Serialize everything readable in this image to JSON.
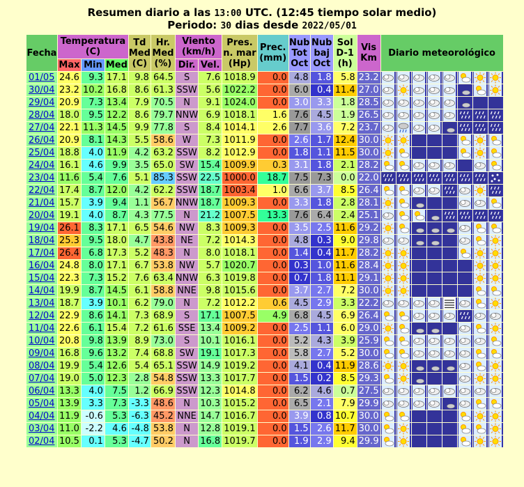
{
  "title": {
    "line1_a": "Resumen diario a las ",
    "line1_time": "13:00",
    "line1_b": " UTC. (12:45 tiempo solar medio)",
    "line2_a": "Periodo: ",
    "line2_days": "30",
    "line2_b": " dias desde ",
    "line2_date": "2022/05/01"
  },
  "headers": {
    "fecha": "Fecha",
    "temperatura": "Temperatura (C)",
    "max": "Max",
    "min": "Min",
    "med": "Med",
    "td": "Td Med (C)",
    "hr": "Hr. Med (%)",
    "viento": "Viento (km/h)",
    "dir": "Dir.",
    "vel": "Vel.",
    "pres": "Pres. n. mar (Hp)",
    "prec": "Prec. (mm)",
    "nubtot": "Nub Tot Oct",
    "nubbaj": "Nub baj Oct",
    "sol": "Sol D-1 (h)",
    "vis": "Vis Km",
    "diario": "Diario meteorológico"
  },
  "rows": [
    {
      "fecha": "01/05",
      "max": "24.6",
      "min": "9.3",
      "med": "17.1",
      "td": "9.8",
      "hr": "64.5",
      "dir": "S",
      "vel": "7.6",
      "pres": "1018.9",
      "prec": "0.0",
      "nt": "4.8",
      "nb": "1.8",
      "sol": "5.8",
      "vis": "23.2",
      "icons": [
        "pc",
        "pc",
        "pc",
        "pc",
        "pc",
        "sc",
        "sun",
        "sun"
      ]
    },
    {
      "fecha": "30/04",
      "max": "23.2",
      "min": "10.2",
      "med": "16.8",
      "td": "8.6",
      "hr": "61.3",
      "dir": "SSW",
      "vel": "5.6",
      "pres": "1022.2",
      "prec": "0.0",
      "nt": "6.0",
      "nb": "0.4",
      "sol": "11.4",
      "vis": "27.0",
      "icons": [
        "pc",
        "sun",
        "pc",
        "pc",
        "pc",
        "mc",
        "sc",
        "sun"
      ]
    },
    {
      "fecha": "29/04",
      "max": "20.9",
      "min": "7.3",
      "med": "13.4",
      "td": "7.9",
      "hr": "70.5",
      "dir": "N",
      "vel": "9.1",
      "pres": "1024.0",
      "prec": "0.0",
      "nt": "3.0",
      "nb": "3.3",
      "sol": "1.8",
      "vis": "28.5",
      "icons": [
        "pc",
        "pc",
        "pc",
        "pc",
        "pc",
        "mc",
        "moon",
        "moon"
      ]
    },
    {
      "fecha": "28/04",
      "max": "18.0",
      "min": "9.5",
      "med": "12.2",
      "td": "8.6",
      "hr": "79.7",
      "dir": "NNW",
      "vel": "6.9",
      "pres": "1018.1",
      "prec": "1.6",
      "nt": "7.6",
      "nb": "4.5",
      "sol": "1.9",
      "vis": "26.5",
      "icons": [
        "pc",
        "pc",
        "pc",
        "pc",
        "pc",
        "rain",
        "rain",
        "rain"
      ]
    },
    {
      "fecha": "27/04",
      "max": "22.1",
      "min": "11.3",
      "med": "14.5",
      "td": "9.9",
      "hr": "77.8",
      "dir": "S",
      "vel": "8.4",
      "pres": "1014.1",
      "prec": "2.6",
      "nt": "7.7",
      "nb": "3.6",
      "sol": "7.2",
      "vis": "23.7",
      "icons": [
        "pc",
        "rainc",
        "pc",
        "pc",
        "mc",
        "rain",
        "rain",
        "rain"
      ]
    },
    {
      "fecha": "26/04",
      "max": "20.9",
      "min": "8.1",
      "med": "14.3",
      "td": "5.5",
      "hr": "58.6",
      "dir": "W",
      "vel": "7.3",
      "pres": "1011.9",
      "prec": "0.0",
      "nt": "2.6",
      "nb": "1.7",
      "sol": "12.4",
      "vis": "30.0",
      "icons": [
        "sun",
        "sun",
        "moon",
        "moon",
        "moon",
        "sc",
        "sun",
        "sc"
      ]
    },
    {
      "fecha": "25/04",
      "max": "18.8",
      "min": "4.0",
      "med": "11.9",
      "td": "4.2",
      "hr": "63.2",
      "dir": "SSW",
      "vel": "8.2",
      "pres": "1012.9",
      "prec": "0.0",
      "nt": "1.8",
      "nb": "1.1",
      "sol": "11.5",
      "vis": "30.0",
      "icons": [
        "sun",
        "sc",
        "moon",
        "moon",
        "moon",
        "sc",
        "sun",
        "sc"
      ]
    },
    {
      "fecha": "24/04",
      "max": "16.1",
      "min": "4.6",
      "med": "9.9",
      "td": "3.5",
      "hr": "65.0",
      "dir": "SW",
      "vel": "15.4",
      "pres": "1009.9",
      "prec": "0.3",
      "nt": "3.1",
      "nb": "1.8",
      "sol": "2.1",
      "vis": "28.2",
      "icons": [
        "sc",
        "sc",
        "pc",
        "pc",
        "pc",
        "moon",
        "pc",
        "sc"
      ]
    },
    {
      "fecha": "23/04",
      "max": "11.6",
      "min": "5.4",
      "med": "7.6",
      "td": "5.1",
      "hr": "85.3",
      "dir": "SSW",
      "vel": "22.5",
      "pres": "1000.0",
      "prec": "18.7",
      "nt": "7.5",
      "nb": "7.3",
      "sol": "0.0",
      "vis": "22.0",
      "icons": [
        "rain",
        "rain",
        "rain",
        "rain",
        "rain",
        "rain",
        "rain",
        "snow"
      ]
    },
    {
      "fecha": "22/04",
      "max": "17.4",
      "min": "8.7",
      "med": "12.0",
      "td": "4.2",
      "hr": "62.2",
      "dir": "SSW",
      "vel": "18.7",
      "pres": "1003.4",
      "prec": "1.0",
      "nt": "6.6",
      "nb": "3.7",
      "sol": "8.5",
      "vis": "26.4",
      "icons": [
        "sc",
        "sc",
        "pc",
        "pc",
        "rain",
        "pc",
        "sun",
        "rain"
      ]
    },
    {
      "fecha": "21/04",
      "max": "15.7",
      "min": "3.9",
      "med": "9.4",
      "td": "1.1",
      "hr": "56.7",
      "dir": "NNW",
      "vel": "18.7",
      "pres": "1009.3",
      "prec": "0.0",
      "nt": "3.3",
      "nb": "1.8",
      "sol": "2.8",
      "vis": "28.1",
      "icons": [
        "sun",
        "sc",
        "mc",
        "moon",
        "moon",
        "pc",
        "pc",
        "sc"
      ]
    },
    {
      "fecha": "20/04",
      "max": "19.1",
      "min": "4.0",
      "med": "8.7",
      "td": "4.3",
      "hr": "77.5",
      "dir": "N",
      "vel": "21.2",
      "pres": "1007.5",
      "prec": "13.3",
      "nt": "7.6",
      "nb": "6.4",
      "sol": "2.4",
      "vis": "25.1",
      "icons": [
        "pc",
        "sc",
        "sc",
        "mc",
        "rain",
        "rain",
        "rain",
        "rain"
      ]
    },
    {
      "fecha": "19/04",
      "max": "26.1",
      "min": "8.3",
      "med": "17.1",
      "td": "6.5",
      "hr": "54.6",
      "dir": "NW",
      "vel": "8.3",
      "pres": "1009.3",
      "prec": "0.0",
      "nt": "3.5",
      "nb": "2.5",
      "sol": "11.6",
      "vis": "29.2",
      "icons": [
        "sun",
        "sc",
        "mc",
        "mc",
        "mc",
        "pc",
        "sc",
        "sc"
      ]
    },
    {
      "fecha": "18/04",
      "max": "25.3",
      "min": "9.5",
      "med": "18.0",
      "td": "4.7",
      "hr": "43.8",
      "dir": "NE",
      "vel": "7.2",
      "pres": "1014.3",
      "prec": "0.0",
      "nt": "4.8",
      "nb": "0.3",
      "sol": "9.0",
      "vis": "29.8",
      "icons": [
        "pc",
        "pc",
        "mc",
        "mc",
        "moon",
        "pc",
        "sc",
        "sun"
      ]
    },
    {
      "fecha": "17/04",
      "max": "26.4",
      "min": "6.8",
      "med": "17.3",
      "td": "5.2",
      "hr": "48.3",
      "dir": "N",
      "vel": "8.0",
      "pres": "1018.1",
      "prec": "0.0",
      "nt": "1.4",
      "nb": "0.4",
      "sol": "11.7",
      "vis": "28.2",
      "icons": [
        "sun",
        "sun",
        "moon",
        "moon",
        "moon",
        "sc",
        "sun",
        "sun"
      ]
    },
    {
      "fecha": "16/04",
      "max": "24.8",
      "min": "8.0",
      "med": "17.1",
      "td": "6.7",
      "hr": "53.8",
      "dir": "NW",
      "vel": "5.7",
      "pres": "1020.7",
      "prec": "0.0",
      "nt": "0.3",
      "nb": "1.0",
      "sol": "11.6",
      "vis": "28.4",
      "icons": [
        "sun",
        "sun",
        "moon",
        "moon",
        "moon",
        "moon",
        "sun",
        "sun"
      ]
    },
    {
      "fecha": "15/04",
      "max": "22.3",
      "min": "7.3",
      "med": "15.2",
      "td": "7.6",
      "hr": "63.4",
      "dir": "NNW",
      "vel": "6.3",
      "pres": "1019.8",
      "prec": "0.0",
      "nt": "0.7",
      "nb": "1.8",
      "sol": "11.1",
      "vis": "29.1",
      "icons": [
        "sun",
        "sun",
        "moon",
        "moon",
        "moon",
        "moon",
        "sun",
        "sun"
      ]
    },
    {
      "fecha": "14/04",
      "max": "19.9",
      "min": "8.7",
      "med": "14.5",
      "td": "6.1",
      "hr": "58.8",
      "dir": "NNE",
      "vel": "9.8",
      "pres": "1015.6",
      "prec": "0.0",
      "nt": "3.7",
      "nb": "2.7",
      "sol": "7.2",
      "vis": "30.0",
      "icons": [
        "sun",
        "sun",
        "moon",
        "moon",
        "moon",
        "moon",
        "sc",
        "sc"
      ]
    },
    {
      "fecha": "13/04",
      "max": "18.7",
      "min": "3.9",
      "med": "10.1",
      "td": "6.2",
      "hr": "79.0",
      "dir": "N",
      "vel": "7.2",
      "pres": "1012.2",
      "prec": "0.6",
      "nt": "4.5",
      "nb": "2.9",
      "sol": "3.3",
      "vis": "22.2",
      "icons": [
        "pc",
        "pc",
        "pc",
        "pc",
        "fog",
        "pc",
        "sc",
        "sun"
      ]
    },
    {
      "fecha": "12/04",
      "max": "22.9",
      "min": "8.6",
      "med": "14.1",
      "td": "7.3",
      "hr": "68.9",
      "dir": "S",
      "vel": "17.1",
      "pres": "1007.5",
      "prec": "4.9",
      "nt": "6.8",
      "nb": "4.5",
      "sol": "6.9",
      "vis": "26.4",
      "icons": [
        "sc",
        "sc",
        "pc",
        "pc",
        "pc",
        "rain",
        "pc",
        "pc"
      ]
    },
    {
      "fecha": "11/04",
      "max": "22.6",
      "min": "6.1",
      "med": "15.4",
      "td": "7.2",
      "hr": "61.6",
      "dir": "SSE",
      "vel": "13.4",
      "pres": "1009.2",
      "prec": "0.0",
      "nt": "2.5",
      "nb": "1.1",
      "sol": "6.0",
      "vis": "29.0",
      "icons": [
        "sun",
        "sc",
        "mc",
        "mc",
        "moon",
        "pc",
        "sc",
        "sun"
      ]
    },
    {
      "fecha": "10/04",
      "max": "20.8",
      "min": "9.8",
      "med": "13.9",
      "td": "8.9",
      "hr": "73.0",
      "dir": "S",
      "vel": "10.1",
      "pres": "1016.1",
      "prec": "0.0",
      "nt": "5.2",
      "nb": "4.3",
      "sol": "3.9",
      "vis": "25.9",
      "icons": [
        "sc",
        "sc",
        "pc",
        "pc",
        "pc",
        "pc",
        "pc",
        "sc"
      ]
    },
    {
      "fecha": "09/04",
      "max": "16.8",
      "min": "9.6",
      "med": "13.2",
      "td": "7.4",
      "hr": "68.8",
      "dir": "SW",
      "vel": "19.1",
      "pres": "1017.3",
      "prec": "0.0",
      "nt": "5.8",
      "nb": "2.7",
      "sol": "5.2",
      "vis": "30.0",
      "icons": [
        "sc",
        "sc",
        "pc",
        "pc",
        "pc",
        "pc",
        "sc",
        "sc"
      ]
    },
    {
      "fecha": "08/04",
      "max": "19.9",
      "min": "5.4",
      "med": "12.6",
      "td": "5.4",
      "hr": "65.1",
      "dir": "SSW",
      "vel": "14.9",
      "pres": "1019.2",
      "prec": "0.0",
      "nt": "4.1",
      "nb": "0.4",
      "sol": "11.9",
      "vis": "28.6",
      "icons": [
        "sun",
        "sun",
        "mc",
        "mc",
        "mc",
        "pc",
        "sc",
        "sun"
      ]
    },
    {
      "fecha": "07/04",
      "max": "19.0",
      "min": "5.0",
      "med": "12.3",
      "td": "2.8",
      "hr": "54.8",
      "dir": "SSW",
      "vel": "13.3",
      "pres": "1017.7",
      "prec": "0.0",
      "nt": "1.5",
      "nb": "0.2",
      "sol": "8.5",
      "vis": "29.3",
      "icons": [
        "sc",
        "sun",
        "mc",
        "moon",
        "moon",
        "pc",
        "sun",
        "sun"
      ]
    },
    {
      "fecha": "06/04",
      "max": "13.3",
      "min": "4.0",
      "med": "7.5",
      "td": "1.2",
      "hr": "66.9",
      "dir": "SSW",
      "vel": "12.3",
      "pres": "1014.8",
      "prec": "0.0",
      "nt": "6.2",
      "nb": "4.6",
      "sol": "0.7",
      "vis": "27.5",
      "icons": [
        "pc",
        "pc",
        "pc",
        "pc",
        "pc",
        "pc",
        "pc",
        "pc"
      ]
    },
    {
      "fecha": "05/04",
      "max": "13.9",
      "min": "3.3",
      "med": "7.3",
      "td": "-3.3",
      "hr": "48.6",
      "dir": "N",
      "vel": "10.3",
      "pres": "1015.2",
      "prec": "0.0",
      "nt": "6.5",
      "nb": "2.1",
      "sol": "7.9",
      "vis": "29.9",
      "icons": [
        "pc",
        "pc",
        "pc",
        "pc",
        "mc",
        "pc",
        "sc",
        "sc"
      ]
    },
    {
      "fecha": "04/04",
      "max": "11.9",
      "min": "-0.6",
      "med": "5.3",
      "td": "-6.3",
      "hr": "45.2",
      "dir": "NNE",
      "vel": "14.7",
      "pres": "1016.7",
      "prec": "0.0",
      "nt": "3.9",
      "nb": "0.8",
      "sol": "10.7",
      "vis": "30.0",
      "icons": [
        "sc",
        "sc",
        "moon",
        "moon",
        "moon",
        "sc",
        "sun",
        "sun"
      ]
    },
    {
      "fecha": "03/04",
      "max": "11.0",
      "min": "-2.2",
      "med": "4.6",
      "td": "-4.8",
      "hr": "53.8",
      "dir": "N",
      "vel": "12.8",
      "pres": "1019.1",
      "prec": "0.0",
      "nt": "1.5",
      "nb": "2.6",
      "sol": "11.7",
      "vis": "30.0",
      "icons": [
        "sc",
        "sun",
        "moon",
        "moon",
        "moon",
        "sc",
        "sc",
        "sun"
      ]
    },
    {
      "fecha": "02/04",
      "max": "10.5",
      "min": "0.1",
      "med": "5.3",
      "td": "-4.7",
      "hr": "50.2",
      "dir": "N",
      "vel": "16.8",
      "pres": "1019.7",
      "prec": "0.0",
      "nt": "1.9",
      "nb": "2.9",
      "sol": "9.4",
      "vis": "29.9",
      "icons": [
        "sc",
        "sun",
        "moon",
        "moon",
        "moon",
        "sc",
        "sun",
        "sun"
      ]
    }
  ]
}
